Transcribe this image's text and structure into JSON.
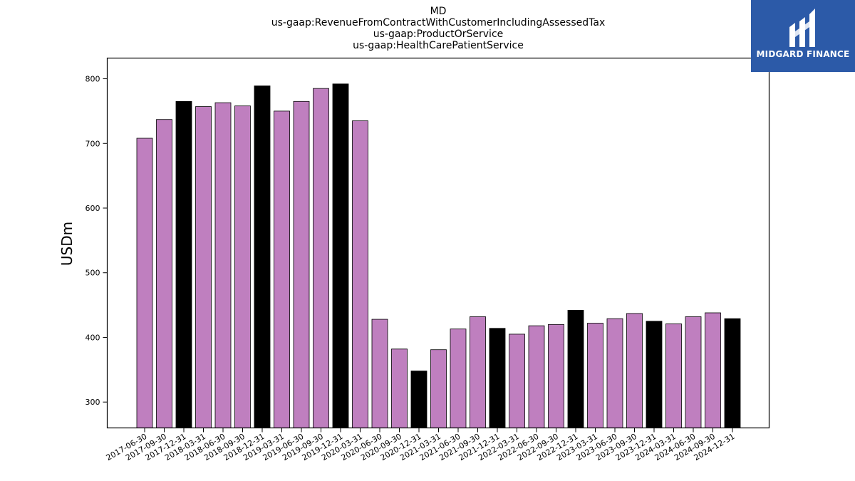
{
  "brand": {
    "name": "MIDGARD FINANCE",
    "background": "#2c5aa8"
  },
  "colors": {
    "default_bar": "#bf7fbf",
    "q4_bar": "#000000"
  },
  "chart_data": {
    "type": "bar",
    "title_lines": [
      "MD",
      "us-gaap:RevenueFromContractWithCustomerIncludingAssessedTax",
      "us-gaap:ProductOrService",
      "us-gaap:HealthCarePatientService"
    ],
    "ylabel": "USDm",
    "xlabel": "",
    "ylim": [
      260,
      832
    ],
    "yticks": [
      300,
      400,
      500,
      600,
      700,
      800
    ],
    "grid": false,
    "categories": [
      "2017-06-30",
      "2017-09-30",
      "2017-12-31",
      "2018-03-31",
      "2018-06-30",
      "2018-09-30",
      "2018-12-31",
      "2019-03-31",
      "2019-06-30",
      "2019-09-30",
      "2019-12-31",
      "2020-03-31",
      "2020-06-30",
      "2020-09-30",
      "2020-12-31",
      "2021-03-31",
      "2021-06-30",
      "2021-09-30",
      "2021-12-31",
      "2022-03-31",
      "2022-06-30",
      "2022-09-30",
      "2022-12-31",
      "2023-03-31",
      "2023-06-30",
      "2023-09-30",
      "2023-12-31",
      "2024-03-31",
      "2024-06-30",
      "2024-09-30",
      "2024-12-31"
    ],
    "values": [
      708,
      737,
      765,
      757,
      763,
      758,
      789,
      750,
      765,
      785,
      792,
      735,
      428,
      382,
      348,
      381,
      413,
      432,
      414,
      405,
      418,
      420,
      442,
      422,
      429,
      437,
      425,
      421,
      432,
      438,
      429
    ]
  }
}
